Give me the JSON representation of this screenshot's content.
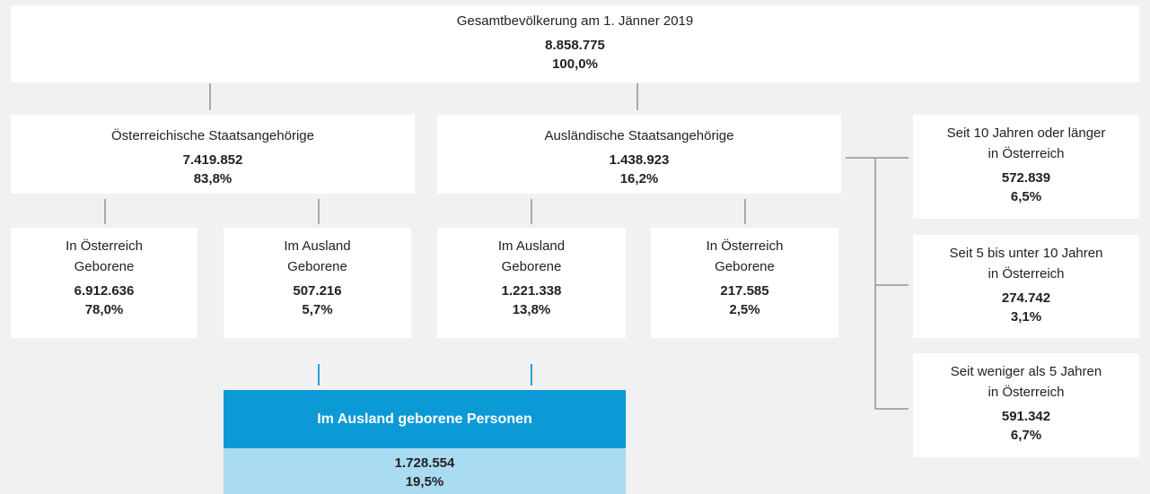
{
  "nodes": [
    {
      "label": [
        "Gesamtbevölkerung am 1. Jänner 2019"
      ],
      "value": "8.858.775",
      "share": "100,0%"
    },
    {
      "label": [
        "Österreichische Staatsangehörige"
      ],
      "value": "7.419.852",
      "share": "83,8%"
    },
    {
      "label": [
        "Ausländische Staatsangehörige"
      ],
      "value": "1.438.923",
      "share": "16,2%"
    },
    {
      "label": [
        "In Österreich",
        "Geborene"
      ],
      "value": "6.912.636",
      "share": "78,0%"
    },
    {
      "label": [
        "Im Ausland",
        "Geborene"
      ],
      "value": "507.216",
      "share": "5,7%"
    },
    {
      "label": [
        "Im Ausland",
        "Geborene"
      ],
      "value": "1.221.338",
      "share": "13,8%"
    },
    {
      "label": [
        "In Österreich",
        "Geborene"
      ],
      "value": "217.585",
      "share": "2,5%"
    },
    {
      "label": [
        "Seit 10 Jahren oder länger",
        "in Österreich"
      ],
      "value": "572.839",
      "share": "6,5%"
    },
    {
      "label": [
        "Seit 5 bis unter 10 Jahren",
        "in Österreich"
      ],
      "value": "274.742",
      "share": "3,1%"
    },
    {
      "label": [
        "Seit weniger als 5 Jahren",
        "in Österreich"
      ],
      "value": "591.342",
      "share": "6,7%"
    },
    {
      "label": [
        "Im Ausland geborene Personen"
      ],
      "value": "1.728.554",
      "share": "19,5%"
    }
  ]
}
